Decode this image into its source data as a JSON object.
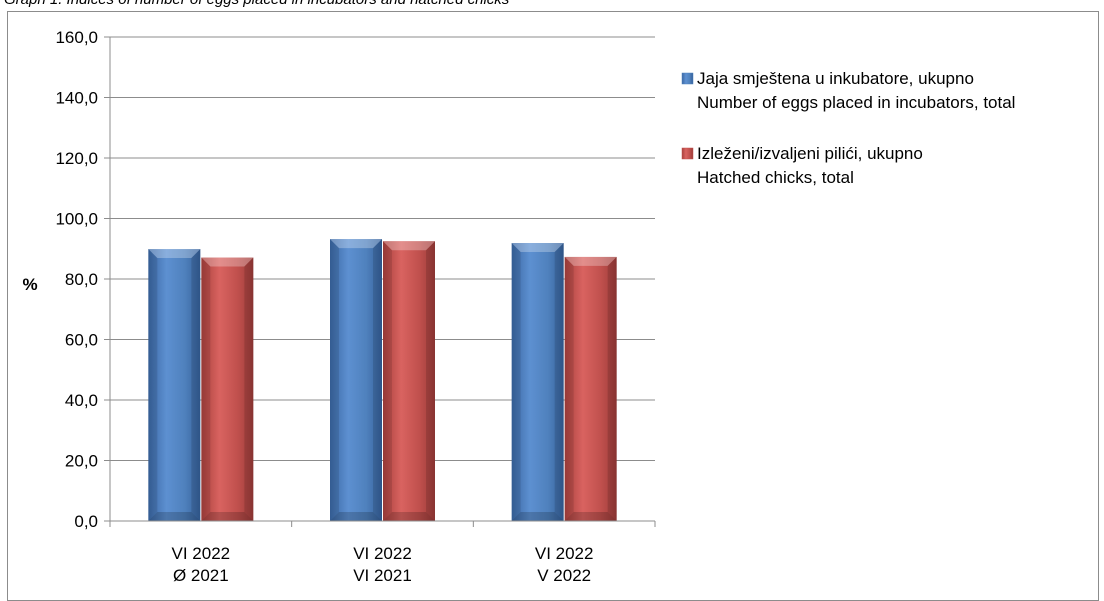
{
  "caption": "Graph 1. Indices of number of eggs placed in incubators and hatched chicks",
  "chart_data": {
    "type": "bar",
    "title": "",
    "ylabel": "%",
    "xlabel": "",
    "ylim": [
      0,
      160
    ],
    "y_ticks": [
      "0,0",
      "20,0",
      "40,0",
      "60,0",
      "80,0",
      "100,0",
      "120,0",
      "140,0",
      "160,0"
    ],
    "grid": true,
    "legend_position": "top-right",
    "categories": [
      [
        "VI 2022",
        "Ø 2021"
      ],
      [
        "VI 2022",
        "VI 2021"
      ],
      [
        "VI 2022",
        "V 2022"
      ]
    ],
    "series": [
      {
        "name": [
          "Jaja smještena u inkubatore, ukupno",
          "Number  of eggs placed in incubators, total"
        ],
        "color": "#4f81bd",
        "values": [
          89.9,
          93.2,
          91.9
        ]
      },
      {
        "name": [
          "Izleženi/izvaljeni pilići, ukupno",
          "Hatched chicks, total"
        ],
        "color": "#c0504d",
        "values": [
          87.1,
          92.5,
          87.3
        ]
      }
    ]
  }
}
